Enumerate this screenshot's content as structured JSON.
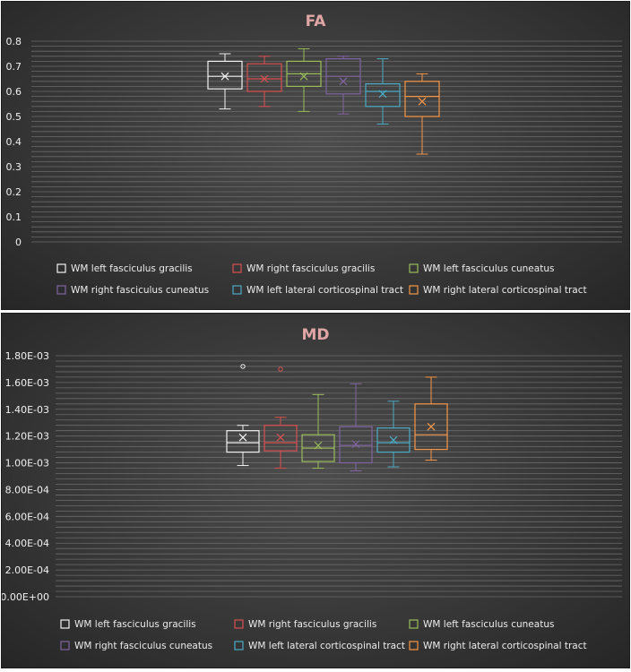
{
  "chart_data": [
    {
      "type": "boxplot",
      "title": "FA",
      "ylim": [
        0,
        0.8
      ],
      "yticks": [
        "0",
        "0.1",
        "0.2",
        "0.3",
        "0.4",
        "0.5",
        "0.6",
        "0.7",
        "0.8"
      ],
      "grid": true,
      "legend_position": "bottom",
      "series": [
        {
          "name": "WM left fasciculus gracilis",
          "color": "#f2f2f2",
          "min": 0.53,
          "q1": 0.61,
          "median": 0.66,
          "q3": 0.72,
          "max": 0.75,
          "mean": 0.66,
          "outliers": []
        },
        {
          "name": "WM right fasciculus gracilis",
          "color": "#d94f4f",
          "min": 0.54,
          "q1": 0.6,
          "median": 0.65,
          "q3": 0.71,
          "max": 0.74,
          "mean": 0.65,
          "outliers": []
        },
        {
          "name": "WM left fasciculus cuneatus",
          "color": "#9bbb59",
          "min": 0.52,
          "q1": 0.62,
          "median": 0.67,
          "q3": 0.72,
          "max": 0.77,
          "mean": 0.66,
          "outliers": []
        },
        {
          "name": "WM right fasciculus cuneatus",
          "color": "#8064a2",
          "min": 0.51,
          "q1": 0.59,
          "median": 0.66,
          "q3": 0.73,
          "max": 0.74,
          "mean": 0.64,
          "outliers": []
        },
        {
          "name": "WM left lateral corticospinal tract",
          "color": "#4bacc6",
          "min": 0.47,
          "q1": 0.54,
          "median": 0.6,
          "q3": 0.63,
          "max": 0.73,
          "mean": 0.59,
          "outliers": []
        },
        {
          "name": "WM right lateral corticospinal tract",
          "color": "#f79646",
          "min": 0.35,
          "q1": 0.5,
          "median": 0.58,
          "q3": 0.64,
          "max": 0.67,
          "mean": 0.56,
          "outliers": []
        }
      ]
    },
    {
      "type": "boxplot",
      "title": "MD",
      "ylim": [
        0,
        0.0018
      ],
      "yticks": [
        "0.00E+00",
        "2.00E-04",
        "4.00E-04",
        "6.00E-04",
        "8.00E-04",
        "1.00E-03",
        "1.20E-03",
        "1.40E-03",
        "1.60E-03",
        "1.80E-03"
      ],
      "grid": true,
      "legend_position": "bottom",
      "series": [
        {
          "name": "WM left fasciculus gracilis",
          "color": "#f2f2f2",
          "min": 0.00098,
          "q1": 0.00108,
          "median": 0.00115,
          "q3": 0.00124,
          "max": 0.00128,
          "mean": 0.00119,
          "outliers": [
            0.00172
          ]
        },
        {
          "name": "WM right fasciculus gracilis",
          "color": "#d94f4f",
          "min": 0.00096,
          "q1": 0.00109,
          "median": 0.00115,
          "q3": 0.00128,
          "max": 0.00134,
          "mean": 0.00119,
          "outliers": [
            0.0017
          ]
        },
        {
          "name": "WM left fasciculus cuneatus",
          "color": "#9bbb59",
          "min": 0.00096,
          "q1": 0.00101,
          "median": 0.00111,
          "q3": 0.00121,
          "max": 0.00151,
          "mean": 0.00113,
          "outliers": []
        },
        {
          "name": "WM right fasciculus cuneatus",
          "color": "#8064a2",
          "min": 0.00094,
          "q1": 0.001,
          "median": 0.00113,
          "q3": 0.00127,
          "max": 0.00159,
          "mean": 0.00114,
          "outliers": []
        },
        {
          "name": "WM left lateral corticospinal tract",
          "color": "#4bacc6",
          "min": 0.00097,
          "q1": 0.00108,
          "median": 0.00115,
          "q3": 0.00126,
          "max": 0.00146,
          "mean": 0.00117,
          "outliers": []
        },
        {
          "name": "WM right lateral corticospinal tract",
          "color": "#f79646",
          "min": 0.00102,
          "q1": 0.0011,
          "median": 0.00121,
          "q3": 0.00144,
          "max": 0.00164,
          "mean": 0.00127,
          "outliers": []
        }
      ]
    }
  ]
}
